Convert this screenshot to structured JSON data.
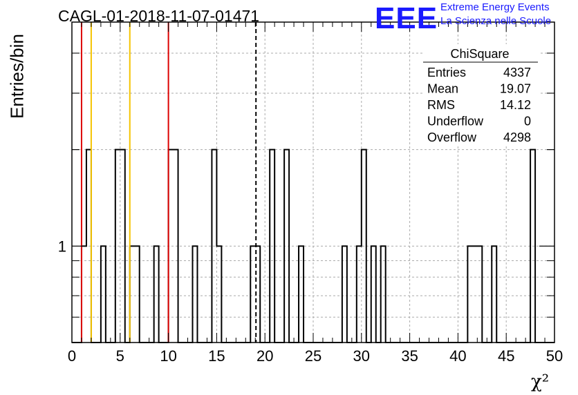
{
  "header": {
    "title": "CAGL-01-2018-11-07-01471",
    "logo_text": "EEE",
    "logo_line1": "Extreme Energy Events",
    "logo_line2": "La Scienza nelle Scuole"
  },
  "stats": {
    "name": "ChiSquare",
    "rows": [
      {
        "label": "Entries",
        "value": "4337"
      },
      {
        "label": "Mean",
        "value": "19.07"
      },
      {
        "label": "RMS",
        "value": "14.12"
      },
      {
        "label": "Underflow",
        "value": "0"
      },
      {
        "label": "Overflow",
        "value": "4298"
      }
    ]
  },
  "chart_data": {
    "type": "bar",
    "title": "CAGL-01-2018-11-07-01471",
    "xlabel": "χ²",
    "ylabel": "Entries/bin",
    "xlim": [
      0,
      50
    ],
    "ylog": true,
    "ylim": [
      0.5,
      5
    ],
    "bin_width": 0.5,
    "x_ticks": [
      0,
      5,
      10,
      15,
      20,
      25,
      30,
      35,
      40,
      45,
      50
    ],
    "y_tick_labels": [
      {
        "value": 1,
        "label": "1"
      }
    ],
    "grid": true,
    "bins": [
      {
        "x": 1.0,
        "value": 1
      },
      {
        "x": 1.5,
        "value": 2
      },
      {
        "x": 3.0,
        "value": 1
      },
      {
        "x": 4.5,
        "value": 2
      },
      {
        "x": 5.0,
        "value": 2
      },
      {
        "x": 6.0,
        "value": 1
      },
      {
        "x": 6.5,
        "value": 1
      },
      {
        "x": 8.5,
        "value": 1
      },
      {
        "x": 10.0,
        "value": 2
      },
      {
        "x": 10.5,
        "value": 2
      },
      {
        "x": 12.5,
        "value": 1
      },
      {
        "x": 14.5,
        "value": 2
      },
      {
        "x": 15.0,
        "value": 1
      },
      {
        "x": 18.5,
        "value": 1
      },
      {
        "x": 19.0,
        "value": 1
      },
      {
        "x": 20.5,
        "value": 2
      },
      {
        "x": 22.0,
        "value": 2
      },
      {
        "x": 23.5,
        "value": 1
      },
      {
        "x": 28.0,
        "value": 1
      },
      {
        "x": 29.5,
        "value": 1
      },
      {
        "x": 30.0,
        "value": 2
      },
      {
        "x": 31.0,
        "value": 1
      },
      {
        "x": 32.0,
        "value": 1
      },
      {
        "x": 41.0,
        "value": 1
      },
      {
        "x": 41.5,
        "value": 1
      },
      {
        "x": 42.0,
        "value": 1
      },
      {
        "x": 43.5,
        "value": 1
      },
      {
        "x": 47.5,
        "value": 2
      }
    ],
    "vertical_lines": [
      {
        "x": 1.0,
        "color": "#dd0000",
        "style": "solid"
      },
      {
        "x": 2.0,
        "color": "#f5c400",
        "style": "solid"
      },
      {
        "x": 6.0,
        "color": "#f5c400",
        "style": "solid"
      },
      {
        "x": 10.0,
        "color": "#dd0000",
        "style": "solid"
      },
      {
        "x": 19.07,
        "color": "#000000",
        "style": "dashed"
      }
    ]
  }
}
